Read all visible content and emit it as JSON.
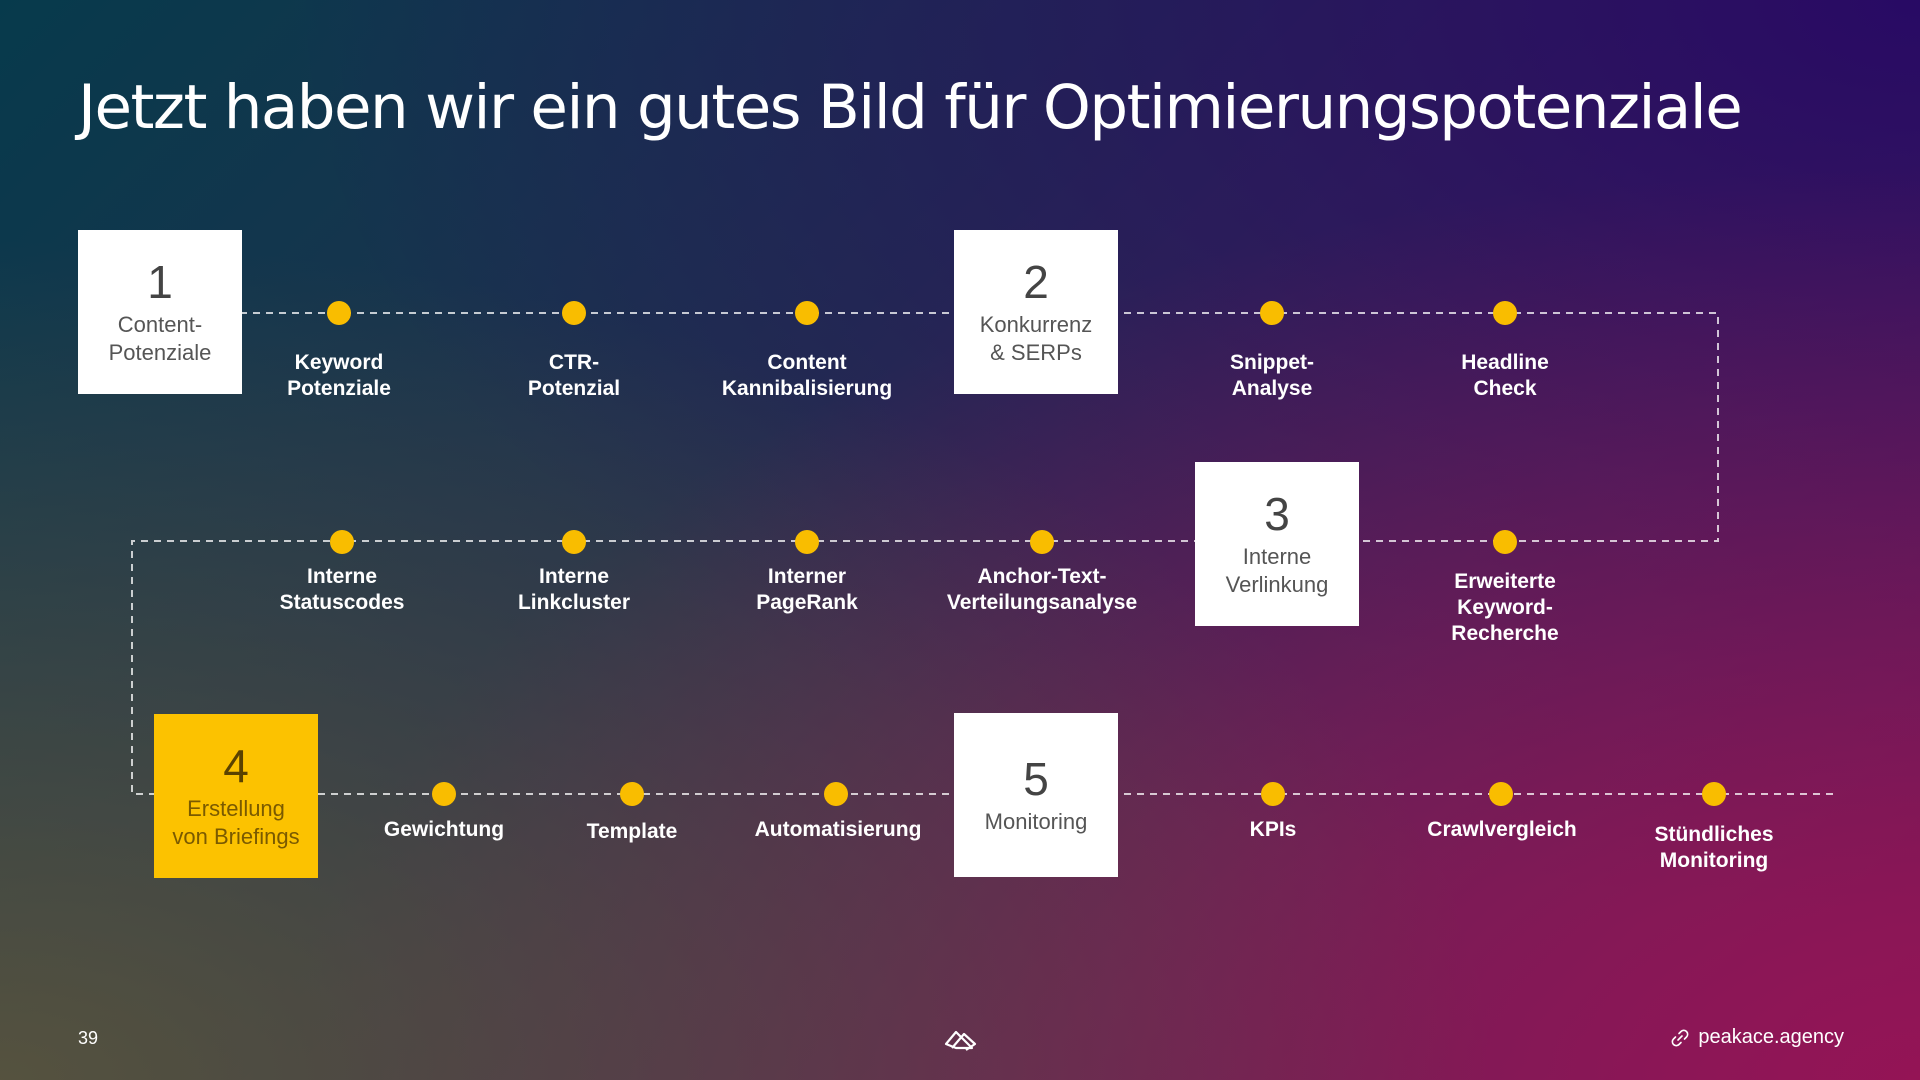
{
  "title": "Jetzt haben wir ein gutes Bild für Optimierungspotenziale",
  "accent_color": "#FCC200",
  "dot_color": "#F9BD00",
  "steps": [
    {
      "number": "1",
      "label": "Content-\nPotenziale"
    },
    {
      "number": "2",
      "label": "Konkurrenz\n& SERPs"
    },
    {
      "number": "3",
      "label": "Interne\nVerlinkung"
    },
    {
      "number": "4",
      "label": "Erstellung\nvon Briefings",
      "highlighted": true
    },
    {
      "number": "5",
      "label": "Monitoring"
    }
  ],
  "row1_items": [
    "Keyword\nPotenziale",
    "CTR-\nPotenzial",
    "Content\nKannibalisierung",
    "Snippet-\nAnalyse",
    "Headline\nCheck"
  ],
  "row2_items": [
    "Interne\nStatuscodes",
    "Interne\nLinkcluster",
    "Interner\nPageRank",
    "Anchor-Text-\nVerteilungsanalyse",
    "Erweiterte\nKeyword-\nRecherche"
  ],
  "row3_items": [
    "Gewichtung",
    "Template",
    "Automatisierung",
    "KPIs",
    "Crawlvergleich",
    "Stündliches\nMonitoring"
  ],
  "footer": {
    "page_number": "39",
    "logo_icon": "peakace-logo-icon",
    "link_icon": "link-icon",
    "website": "peakace.agency"
  }
}
